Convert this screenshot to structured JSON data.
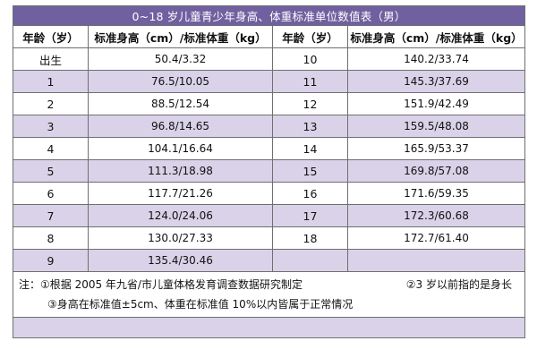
{
  "table": {
    "title": "0~18 岁儿童青少年身高、体重标准单位数值表（男）",
    "headers": [
      "年龄（岁）",
      "标准身高（cm）/标准体重（kg）",
      "年龄（岁）",
      "标准身高（cm）/标准体重（kg）"
    ],
    "rows": [
      {
        "age_left": "出生",
        "value_left": "50.4/3.32",
        "age_right": "10",
        "value_right": "140.2/33.74"
      },
      {
        "age_left": "1",
        "value_left": "76.5/10.05",
        "age_right": "11",
        "value_right": "145.3/37.69"
      },
      {
        "age_left": "2",
        "value_left": "88.5/12.54",
        "age_right": "12",
        "value_right": "151.9/42.49"
      },
      {
        "age_left": "3",
        "value_left": "96.8/14.65",
        "age_right": "13",
        "value_right": "159.5/48.08"
      },
      {
        "age_left": "4",
        "value_left": "104.1/16.64",
        "age_right": "14",
        "value_right": "165.9/53.37"
      },
      {
        "age_left": "5",
        "value_left": "111.3/18.98",
        "age_right": "15",
        "value_right": "169.8/57.08"
      },
      {
        "age_left": "6",
        "value_left": "117.7/21.26",
        "age_right": "16",
        "value_right": "171.6/59.35"
      },
      {
        "age_left": "7",
        "value_left": "124.0/24.06",
        "age_right": "17",
        "value_right": "172.3/60.68"
      },
      {
        "age_left": "8",
        "value_left": "130.0/27.33",
        "age_right": "18",
        "value_right": "172.7/61.40"
      },
      {
        "age_left": "9",
        "value_left": "135.4/30.46",
        "age_right": "",
        "value_right": ""
      }
    ]
  },
  "notes": {
    "line1_left": "注：①根据 2005 年九省/市儿童体格发育调查数据研究制定",
    "line1_right": "②3 岁以前指的是身长",
    "line2": "③身高在标准值±5cm、体重在标准值 10%以内皆属于正常情况"
  },
  "colors": {
    "title_bg": "#7060a0",
    "alt_row_bg": "#d9d2e8",
    "border": "#6f6f6f"
  }
}
